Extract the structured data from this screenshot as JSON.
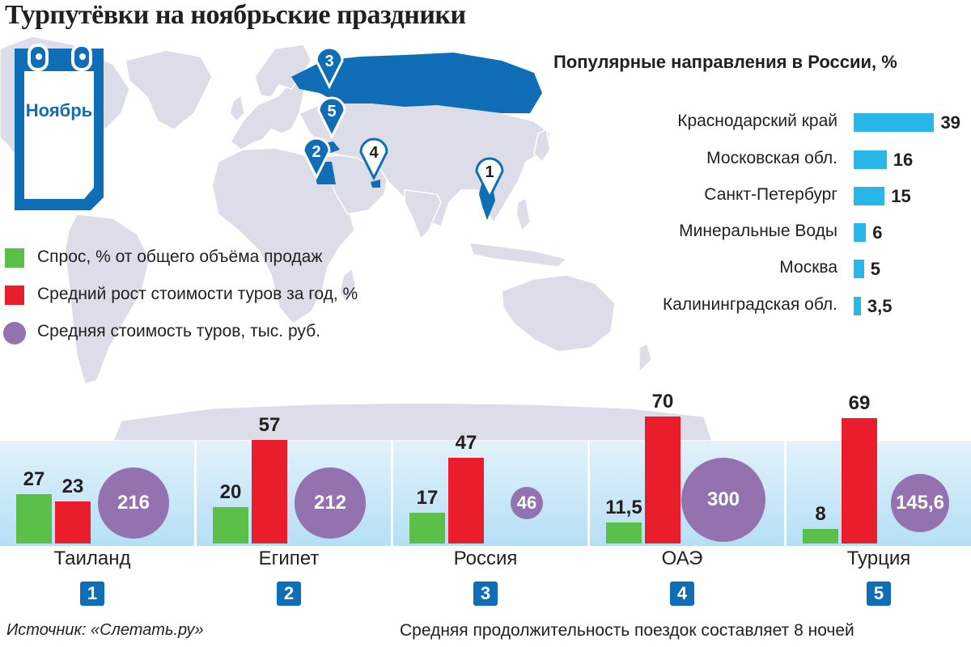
{
  "title": "Турпутёвки на ноябрьские праздники",
  "calendar_label": "Ноябрь",
  "colors": {
    "demand": "#5bc04a",
    "growth": "#ea1d2c",
    "cost": "#9472b0",
    "russia_bar": "#29b6e8",
    "marker": "#0f6eb6",
    "map_land": "#dcdde8"
  },
  "map_markers": [
    "1",
    "2",
    "3",
    "4",
    "5"
  ],
  "legend": [
    {
      "label": "Спрос, % от общего объёма продаж",
      "color": "#5bc04a",
      "shape": "square"
    },
    {
      "label": "Средний рост стоимости туров за год, %",
      "color": "#ea1d2c",
      "shape": "square"
    },
    {
      "label": "Средняя стоимость туров, тыс. руб.",
      "color": "#9472b0",
      "shape": "circle"
    }
  ],
  "source": "Источник: «Слетать.ру»",
  "note": "Средняя продолжительность поездок составляет 8 ночей",
  "chart_data": [
    {
      "type": "bar",
      "title": "Популярные направления в России, %",
      "orientation": "horizontal",
      "categories": [
        "Краснодарский край",
        "Московская обл.",
        "Санкт-Петербург",
        "Минеральные Воды",
        "Москва",
        "Калининградская обл."
      ],
      "values": [
        39,
        16,
        15,
        6,
        5,
        3.5
      ],
      "value_labels": [
        "39",
        "16",
        "15",
        "6",
        "5",
        "3,5"
      ]
    },
    {
      "type": "bar",
      "title": "",
      "categories": [
        "Таиланд",
        "Египет",
        "Россия",
        "ОАЭ",
        "Турция"
      ],
      "category_numbers": [
        "1",
        "2",
        "3",
        "4",
        "5"
      ],
      "series": [
        {
          "name": "Спрос, % от общего объёма продаж",
          "values": [
            27,
            20,
            17,
            11.5,
            8
          ],
          "labels": [
            "27",
            "20",
            "17",
            "11,5",
            "8"
          ]
        },
        {
          "name": "Средний рост стоимости туров за год, %",
          "values": [
            23,
            57,
            47,
            70,
            69
          ],
          "labels": [
            "23",
            "57",
            "47",
            "70",
            "69"
          ]
        },
        {
          "name": "Средняя стоимость туров, тыс. руб.",
          "values": [
            216,
            212,
            46,
            300,
            145.6
          ],
          "labels": [
            "216",
            "212",
            "46",
            "300",
            "145,6"
          ],
          "shape": "circle"
        }
      ]
    }
  ]
}
